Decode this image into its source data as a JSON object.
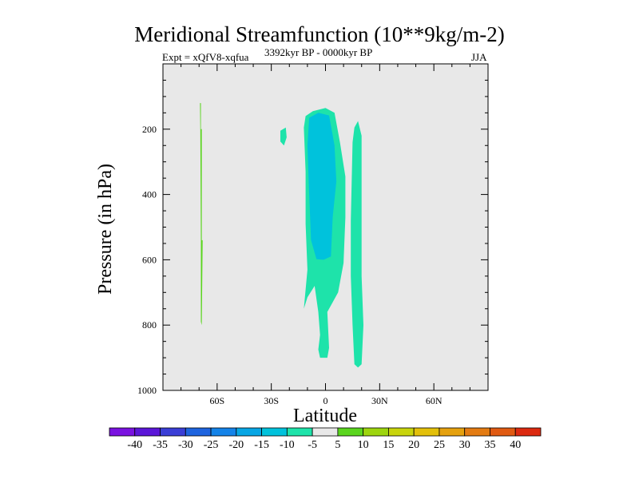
{
  "chart_data": {
    "type": "heatmap",
    "title": "Meridional Streamfunction (10**9kg/m-2)",
    "subtitle_left": "Expt = xQfV8-xqfua",
    "subtitle_center": "3392kyr BP - 0000kyr BP",
    "subtitle_right": "JJA",
    "xlabel": "Latitude",
    "ylabel": "Pressure (in hPa)",
    "xlim": [
      -90,
      90
    ],
    "ylim": [
      1000,
      0
    ],
    "x_ticks": [
      {
        "value": -60,
        "label": "60S"
      },
      {
        "value": -30,
        "label": "30S"
      },
      {
        "value": 0,
        "label": "0"
      },
      {
        "value": 30,
        "label": "30N"
      },
      {
        "value": 60,
        "label": "60N"
      }
    ],
    "y_ticks": [
      {
        "value": 200,
        "label": "200"
      },
      {
        "value": 400,
        "label": "400"
      },
      {
        "value": 600,
        "label": "600"
      },
      {
        "value": 800,
        "label": "800"
      },
      {
        "value": 1000,
        "label": "1000"
      }
    ],
    "regions": [
      {
        "name": "narrow-band-60s",
        "level": 5,
        "color": "#5ad51e",
        "points": [
          [
            -69.5,
            120
          ],
          [
            -69,
            120
          ],
          [
            -69,
            200
          ],
          [
            -68.5,
            200
          ],
          [
            -68.5,
            540
          ],
          [
            -68,
            540
          ],
          [
            -68.5,
            800
          ],
          [
            -69,
            790
          ],
          [
            -69,
            540
          ],
          [
            -69.3,
            200
          ]
        ]
      },
      {
        "name": "blob-upper",
        "level": -5,
        "color": "#1ee3aa",
        "points": [
          [
            -25,
            205
          ],
          [
            -22,
            195
          ],
          [
            -21.5,
            225
          ],
          [
            -23,
            250
          ],
          [
            -25,
            238
          ]
        ]
      },
      {
        "name": "central-column-outer",
        "level": -5,
        "color": "#1ee3aa",
        "points": [
          [
            -11,
            160
          ],
          [
            -7,
            145
          ],
          [
            0,
            135
          ],
          [
            5,
            150
          ],
          [
            8,
            240
          ],
          [
            11,
            345
          ],
          [
            11,
            470
          ],
          [
            10,
            610
          ],
          [
            7,
            700
          ],
          [
            1,
            760
          ],
          [
            2,
            870
          ],
          [
            1,
            900
          ],
          [
            -3,
            900
          ],
          [
            -4,
            875
          ],
          [
            -3,
            830
          ],
          [
            -4,
            760
          ],
          [
            -6,
            680
          ],
          [
            -10,
            715
          ],
          [
            -12,
            750
          ],
          [
            -10,
            630
          ],
          [
            -11,
            490
          ],
          [
            -11,
            330
          ],
          [
            -12,
            195
          ]
        ]
      },
      {
        "name": "central-column-inner",
        "level": -10,
        "color": "#00c2dc",
        "points": [
          [
            -9,
            165
          ],
          [
            -4,
            150
          ],
          [
            2,
            158
          ],
          [
            5,
            250
          ],
          [
            6,
            360
          ],
          [
            4,
            470
          ],
          [
            3,
            590
          ],
          [
            -1,
            600
          ],
          [
            -5,
            598
          ],
          [
            -8,
            540
          ],
          [
            -9,
            400
          ],
          [
            -10,
            250
          ]
        ]
      },
      {
        "name": "eastern-column",
        "level": -5,
        "color": "#1ee3aa",
        "points": [
          [
            16,
            195
          ],
          [
            18,
            175
          ],
          [
            20,
            220
          ],
          [
            20,
            480
          ],
          [
            20,
            650
          ],
          [
            21,
            800
          ],
          [
            20,
            920
          ],
          [
            18,
            930
          ],
          [
            16,
            920
          ],
          [
            15,
            800
          ],
          [
            14,
            650
          ],
          [
            14,
            480
          ],
          [
            15,
            240
          ]
        ]
      }
    ],
    "colorbar": {
      "labels": [
        "-40",
        "-35",
        "-30",
        "-25",
        "-20",
        "-15",
        "-10",
        "-5",
        "5",
        "10",
        "15",
        "20",
        "25",
        "30",
        "35",
        "40"
      ],
      "colors": [
        "#7a12e0",
        "#5b16d8",
        "#3a3ed6",
        "#1e64df",
        "#1483e8",
        "#07a6e4",
        "#00c2dc",
        "#1ee3aa",
        "#e8e8e8",
        "#5ad51e",
        "#9dd50e",
        "#c8d40c",
        "#e3c00a",
        "#e5a10f",
        "#e37b12",
        "#e05a12",
        "#dc2a10"
      ]
    }
  }
}
